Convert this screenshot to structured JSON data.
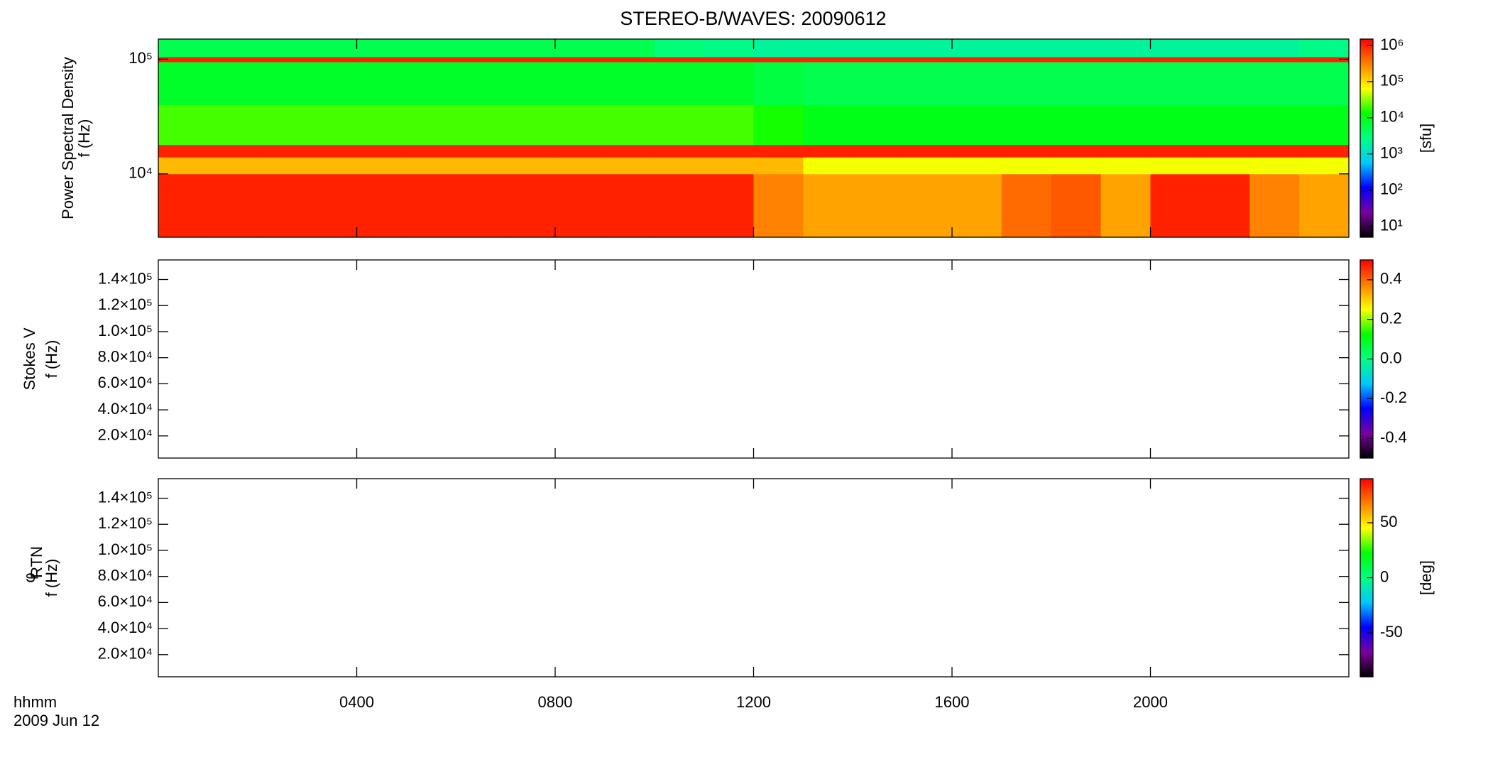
{
  "chart_data": [
    {
      "type": "heatmap",
      "title": "STEREO-B/WAVES: 20090612",
      "ylabel": [
        "Power Spectral Density",
        "f (Hz)"
      ],
      "ylog": true,
      "ylim": [
        2800,
        150000
      ],
      "yticks": [
        {
          "value": 10000,
          "label": "10⁴"
        },
        {
          "value": 100000,
          "label": "10⁵"
        }
      ],
      "xlim": [
        0,
        24
      ],
      "x_bins": [
        0,
        1,
        2,
        3,
        4,
        5,
        6,
        7,
        8,
        9,
        10,
        11,
        12,
        13,
        14,
        15,
        16,
        17,
        18,
        19,
        20,
        21,
        22,
        23,
        24
      ],
      "y_bins": [
        2800,
        10000,
        14000,
        18000,
        40000,
        95000,
        105000,
        150000
      ],
      "z": [
        [
          1000000,
          1000000,
          1000000,
          1000000,
          1000000,
          1000000,
          1000000,
          1000000,
          1000000,
          1000000,
          1000000,
          1000000,
          300000,
          200000,
          200000,
          200000,
          200000,
          400000,
          500000,
          200000,
          1000000,
          1000000,
          300000,
          200000
        ],
        [
          150000,
          150000,
          150000,
          150000,
          150000,
          150000,
          150000,
          150000,
          150000,
          150000,
          150000,
          150000,
          150000,
          60000,
          60000,
          60000,
          60000,
          60000,
          60000,
          60000,
          60000,
          60000,
          60000,
          60000
        ],
        [
          1000000,
          1000000,
          1000000,
          1000000,
          1000000,
          1000000,
          1000000,
          1000000,
          1000000,
          1000000,
          1000000,
          1000000,
          1000000,
          1000000,
          1000000,
          1000000,
          1000000,
          1000000,
          1000000,
          1000000,
          1000000,
          1000000,
          1000000,
          1000000
        ],
        [
          20000,
          20000,
          20000,
          20000,
          20000,
          20000,
          20000,
          20000,
          20000,
          20000,
          20000,
          20000,
          15000,
          10000,
          10000,
          10000,
          10000,
          10000,
          10000,
          10000,
          10000,
          10000,
          10000,
          10000
        ],
        [
          8000,
          8000,
          8000,
          8000,
          8000,
          8000,
          8000,
          8000,
          8000,
          8000,
          8000,
          8000,
          6000,
          5000,
          5000,
          5000,
          5000,
          5000,
          5000,
          5000,
          5000,
          5000,
          5000,
          5000
        ],
        [
          1000000,
          1000000,
          1000000,
          1000000,
          1000000,
          1000000,
          1000000,
          1000000,
          1000000,
          1000000,
          1000000,
          1000000,
          1000000,
          1000000,
          1000000,
          1000000,
          1000000,
          1000000,
          1000000,
          1000000,
          1000000,
          1000000,
          1000000,
          1000000
        ],
        [
          5000,
          5000,
          5000,
          5000,
          5000,
          5000,
          5000,
          5000,
          5000,
          5000,
          3000,
          2500,
          2000,
          2000,
          2000,
          2000,
          2000,
          2000,
          2000,
          2000,
          2000,
          2000,
          2000,
          2500
        ]
      ],
      "clog": true,
      "clim": [
        5,
        1500000
      ],
      "cticks": [
        {
          "value": 10,
          "label": "10¹"
        },
        {
          "value": 100,
          "label": "10²"
        },
        {
          "value": 1000,
          "label": "10³"
        },
        {
          "value": 10000,
          "label": "10⁴"
        },
        {
          "value": 100000,
          "label": "10⁵"
        },
        {
          "value": 1000000,
          "label": "10⁶"
        }
      ],
      "clabel": "[sfu]",
      "colormap": [
        "#000000",
        "#7a00a0",
        "#0000ff",
        "#00c8ff",
        "#00ff80",
        "#00ff00",
        "#ffff00",
        "#ff8000",
        "#ff0000"
      ]
    },
    {
      "type": "heatmap",
      "ylabel": [
        "Stokes V",
        "f (Hz)"
      ],
      "ylim": [
        3000,
        155000
      ],
      "yticks": [
        {
          "value": 20000,
          "label": "2.0×10⁴"
        },
        {
          "value": 40000,
          "label": "4.0×10⁴"
        },
        {
          "value": 60000,
          "label": "6.0×10⁴"
        },
        {
          "value": 80000,
          "label": "8.0×10⁴"
        },
        {
          "value": 100000,
          "label": "1.0×10⁵"
        },
        {
          "value": 120000,
          "label": "1.2×10⁵"
        },
        {
          "value": 140000,
          "label": "1.4×10⁵"
        }
      ],
      "xlim": [
        0,
        24
      ],
      "clim": [
        -0.5,
        0.5
      ],
      "cticks": [
        -0.4,
        -0.2,
        {
          "value": 0,
          "label": "0.0"
        },
        0.2,
        0.4
      ],
      "colormap": [
        "#000000",
        "#7a00a0",
        "#0000ff",
        "#00c8ff",
        "#00ff80",
        "#00ff00",
        "#ffff00",
        "#ff8000",
        "#ff0000"
      ]
    },
    {
      "type": "heatmap",
      "ylabel": [
        "φ",
        "f (Hz)"
      ],
      "ylabel_sub": "RTN",
      "ylim": [
        3000,
        155000
      ],
      "yticks": [
        {
          "value": 20000,
          "label": "2.0×10⁴"
        },
        {
          "value": 40000,
          "label": "4.0×10⁴"
        },
        {
          "value": 60000,
          "label": "6.0×10⁴"
        },
        {
          "value": 80000,
          "label": "8.0×10⁴"
        },
        {
          "value": 100000,
          "label": "1.0×10⁵"
        },
        {
          "value": 120000,
          "label": "1.2×10⁵"
        },
        {
          "value": 140000,
          "label": "1.4×10⁵"
        }
      ],
      "xlim": [
        0,
        24
      ],
      "xticks": [
        {
          "value": 4,
          "label": "0400"
        },
        {
          "value": 8,
          "label": "0800"
        },
        {
          "value": 12,
          "label": "1200"
        },
        {
          "value": 16,
          "label": "1600"
        },
        {
          "value": 20,
          "label": "2000"
        }
      ],
      "xlabel": "hhmm",
      "date_label": "2009 Jun 12",
      "clim": [
        -90,
        90
      ],
      "cticks": [
        -50,
        0,
        50
      ],
      "clabel": "[deg]",
      "colormap": [
        "#000000",
        "#7a00a0",
        "#0000ff",
        "#00c8ff",
        "#00ff80",
        "#00ff00",
        "#ffff00",
        "#ff8000",
        "#ff0000"
      ]
    }
  ]
}
